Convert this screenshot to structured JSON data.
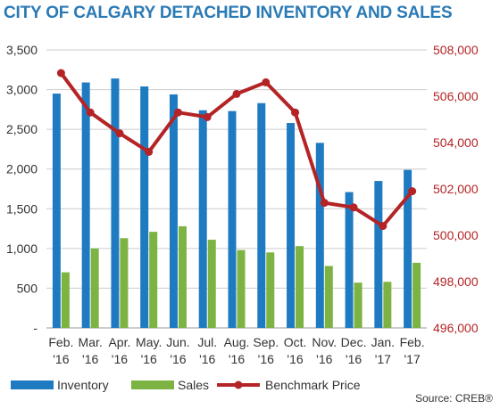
{
  "colors": {
    "title": "#2a7ab5",
    "inventory": "#1f7bc1",
    "sales": "#7cb342",
    "price": "#b42426",
    "axis_text": "#333333",
    "right_axis_text": "#b42426",
    "grid": "#cccccc"
  },
  "chart_data": {
    "type": "bar",
    "title": "CITY OF CALGARY DETACHED INVENTORY AND SALES",
    "categories": [
      [
        "Feb.",
        "'16"
      ],
      [
        "Mar.",
        "'16"
      ],
      [
        "Apr.",
        "'16"
      ],
      [
        "May.",
        "'16"
      ],
      [
        "Jun.",
        "'16"
      ],
      [
        "Jul.",
        "'16"
      ],
      [
        "Aug.",
        "'16"
      ],
      [
        "Sep.",
        "'16"
      ],
      [
        "Oct.",
        "'16"
      ],
      [
        "Nov.",
        "'16"
      ],
      [
        "Dec.",
        "'16"
      ],
      [
        "Jan.",
        "'17"
      ],
      [
        "Feb.",
        "'17"
      ]
    ],
    "series": [
      {
        "name": "Inventory",
        "type": "bar",
        "axis": "left",
        "values": [
          2950,
          3090,
          3140,
          3040,
          2940,
          2740,
          2730,
          2830,
          2580,
          2330,
          1710,
          1850,
          1990
        ]
      },
      {
        "name": "Sales",
        "type": "bar",
        "axis": "left",
        "values": [
          700,
          1000,
          1130,
          1210,
          1280,
          1110,
          980,
          950,
          1030,
          780,
          570,
          580,
          820
        ]
      },
      {
        "name": "Benchmark Price",
        "type": "line",
        "axis": "right",
        "values": [
          507000,
          505300,
          504400,
          503600,
          505300,
          505100,
          506100,
          506600,
          505300,
          501400,
          501200,
          500400,
          501900
        ]
      }
    ],
    "left_axis": {
      "ylim": [
        0,
        3500
      ],
      "ticks": [
        "-",
        "500",
        "1,000",
        "1,500",
        "2,000",
        "2,500",
        "3,000",
        "3,500"
      ]
    },
    "right_axis": {
      "ylim": [
        496000,
        508000
      ],
      "ticks": [
        "496,000",
        "498,000",
        "500,000",
        "502,000",
        "504,000",
        "506,000",
        "508,000"
      ]
    },
    "grid": true,
    "legend_position": "bottom",
    "source": "Source: CREB®"
  }
}
